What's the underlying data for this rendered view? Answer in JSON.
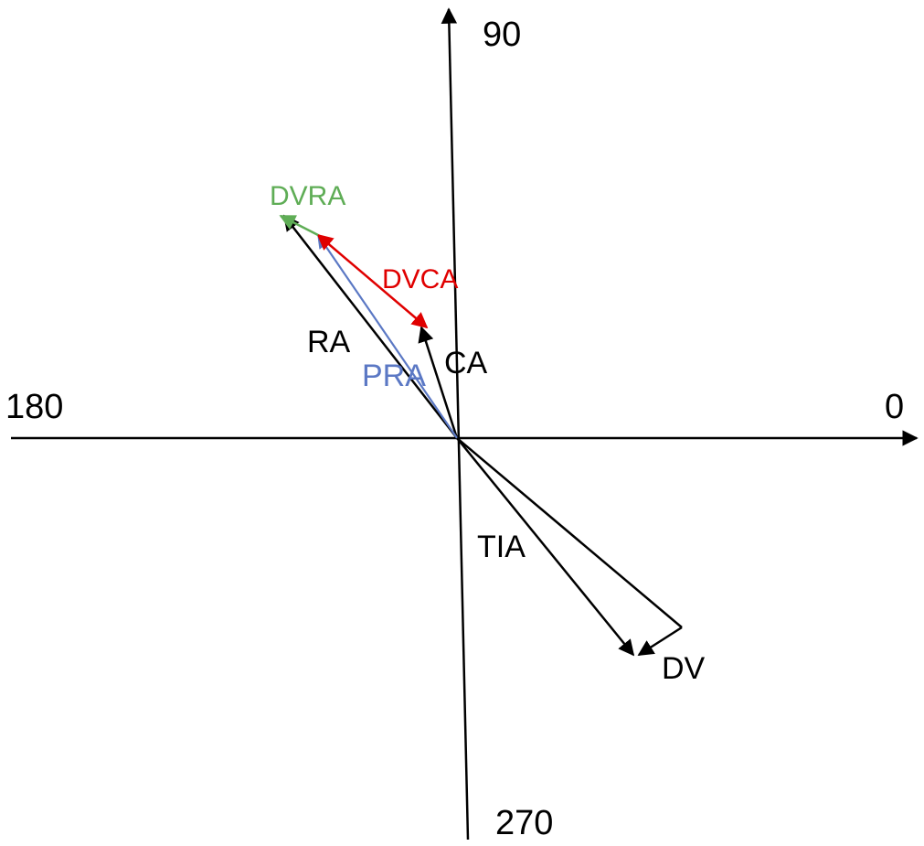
{
  "axes": {
    "labels": {
      "deg_0": "0",
      "deg_90": "90",
      "deg_180": "180",
      "deg_270": "270"
    }
  },
  "vectors": {
    "ra": {
      "label": "RA",
      "color": "#000000"
    },
    "ca": {
      "label": "CA",
      "color": "#000000"
    },
    "pra": {
      "label": "PRA",
      "color": "#5b78c4"
    },
    "dvca": {
      "label": "DVCA",
      "color": "#e00000"
    },
    "dvra": {
      "label": "DVRA",
      "color": "#5fad56"
    },
    "tia": {
      "label": "TIA",
      "color": "#000000"
    },
    "dv": {
      "label": "DV",
      "color": "#000000"
    }
  }
}
